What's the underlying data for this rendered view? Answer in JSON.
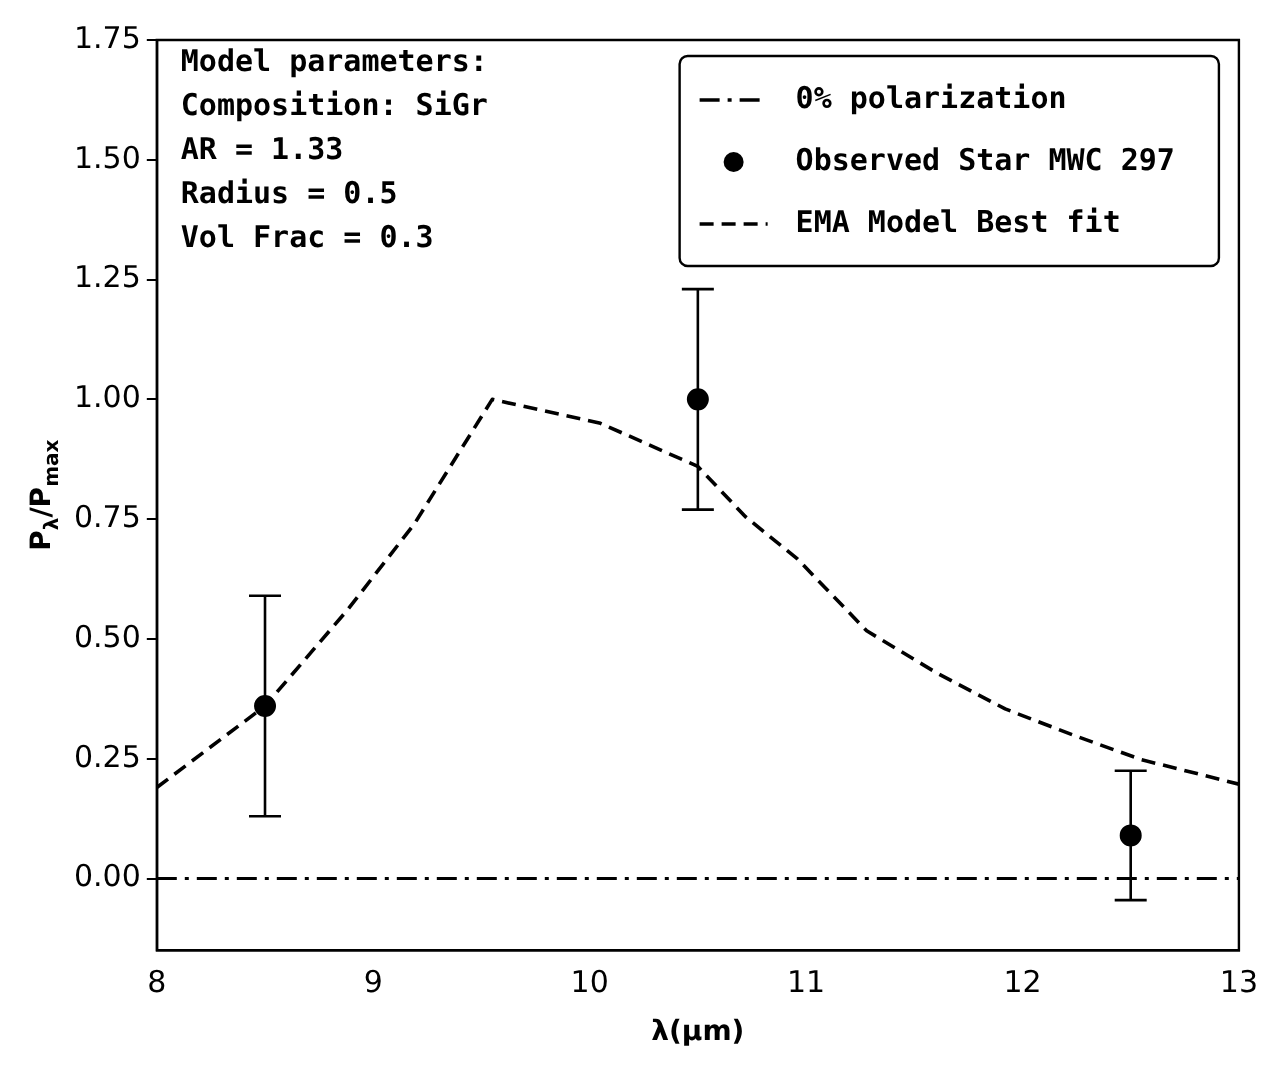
{
  "chart_data": {
    "type": "line",
    "xlabel": "λ(μm)",
    "ylabel": "P$_{λ}$/P$_{max}$",
    "xlim": [
      8,
      13
    ],
    "xticks": [
      8,
      9,
      10,
      11,
      12,
      13
    ],
    "ylim": [
      -0.15,
      1.75
    ],
    "yticks": [
      {
        "value": 0,
        "label": "0.00"
      },
      0.25,
      {
        "value": 0.5,
        "label": "0.50"
      },
      0.75,
      {
        "value": 1,
        "label": "1.00"
      },
      1.25,
      {
        "value": 1.5,
        "label": "1.50"
      },
      1.75
    ],
    "grid": false,
    "legend": "top right",
    "annotations": [
      "Model parameters:",
      "Composition: SiGr",
      "AR = 1.33",
      "Radius = 0.5",
      "Vol Frac = 0.3"
    ],
    "ref_lines": [
      {
        "axis": "y",
        "value": 0,
        "label": "0% polarization",
        "color": "#000000"
      }
    ],
    "series": [
      {
        "name": "Observed Star MWC 297",
        "type": "scatter",
        "color": "#000000",
        "marker": "circle",
        "x": [
          8.5,
          10.5,
          12.5
        ],
        "values": [
          0.36,
          1.0,
          0.09
        ],
        "errors": [
          0.23,
          0.23,
          0.135
        ]
      },
      {
        "name": "EMA Model Best fit",
        "type": "line",
        "color": "#000000",
        "line_style": "dashed",
        "marker": "none",
        "x": [
          8,
          8.5,
          8.88,
          9.19,
          9.55,
          10.05,
          10.5,
          10.72,
          10.96,
          11.28,
          11.6,
          11.92,
          12.23,
          12.55,
          13
        ],
        "values": [
          0.19,
          0.36,
          0.56,
          0.74,
          1.0,
          0.95,
          0.86,
          0.755,
          0.667,
          0.517,
          0.43,
          0.354,
          0.3,
          0.248,
          0.197
        ]
      }
    ]
  }
}
